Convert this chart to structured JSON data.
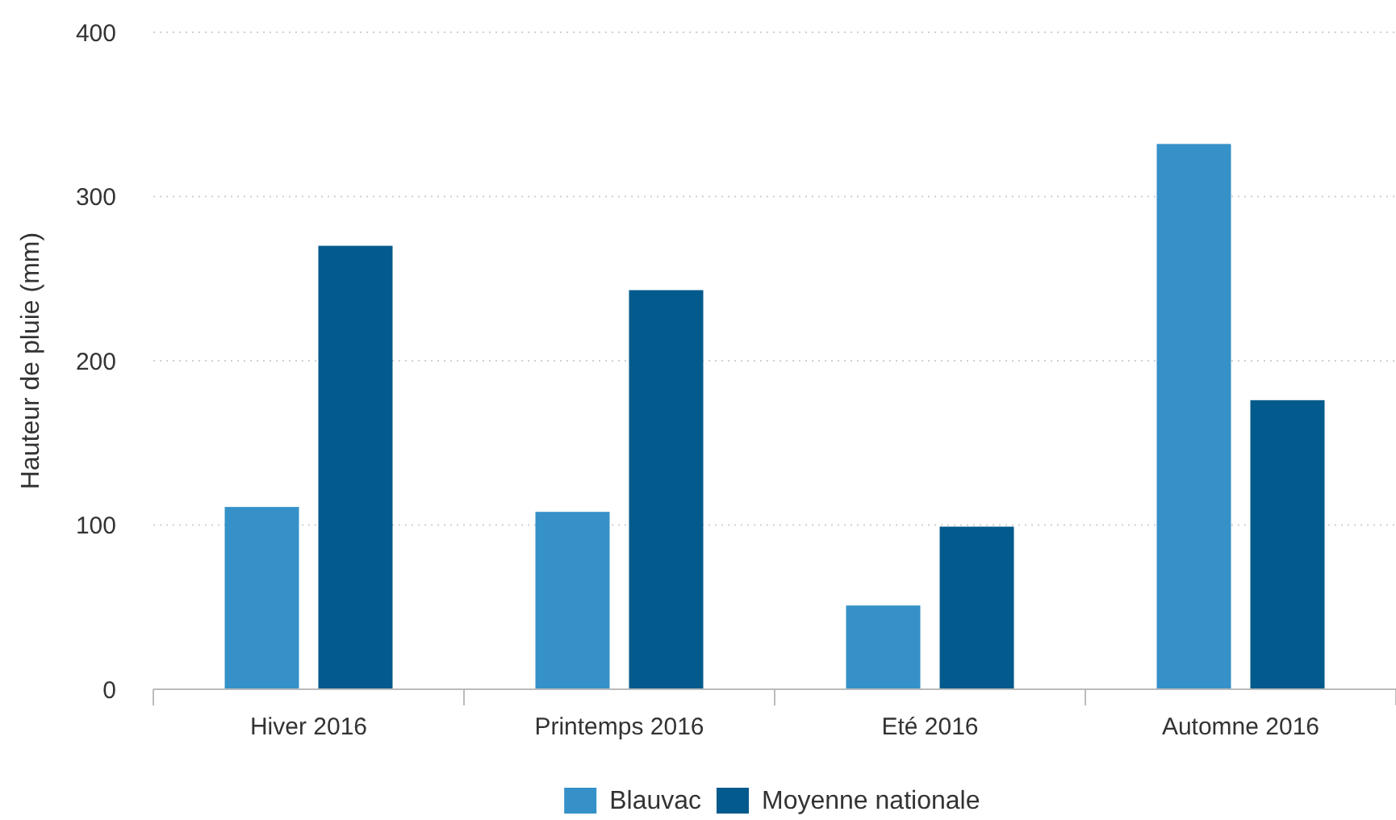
{
  "chart_data": {
    "type": "bar",
    "ylabel": "Hauteur de pluie (mm)",
    "categories": [
      "Hiver 2016",
      "Printemps 2016",
      "Eté 2016",
      "Automne 2016"
    ],
    "series": [
      {
        "name": "Blauvac",
        "color": "#3591c8",
        "values": [
          111,
          108,
          51,
          332
        ]
      },
      {
        "name": "Moyenne nationale",
        "color": "#035a8c",
        "values": [
          270,
          243,
          99,
          176
        ]
      }
    ],
    "ylim": [
      0,
      400
    ],
    "yticks": [
      0,
      100,
      200,
      300,
      400
    ],
    "grid": "y",
    "legend": "bottom"
  }
}
